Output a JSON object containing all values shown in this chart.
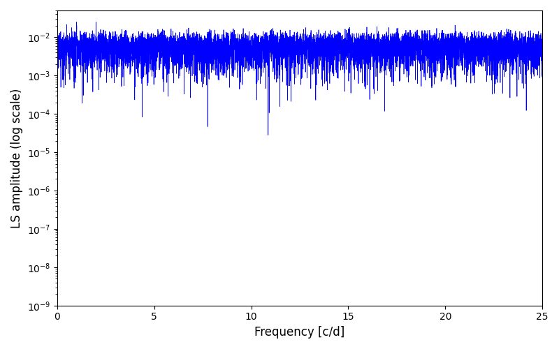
{
  "xlabel": "Frequency [c/d]",
  "ylabel": "LS amplitude (log scale)",
  "xlim": [
    0,
    25
  ],
  "ylim": [
    1e-09,
    0.05
  ],
  "line_color": "#0000ff",
  "line_width": 0.5,
  "background_color": "#ffffff",
  "figsize": [
    8.0,
    5.0
  ],
  "dpi": 100,
  "seed": 1234,
  "freq_max": 25.0,
  "n_freq": 9000,
  "n_obs": 500,
  "t_span": 450.0
}
